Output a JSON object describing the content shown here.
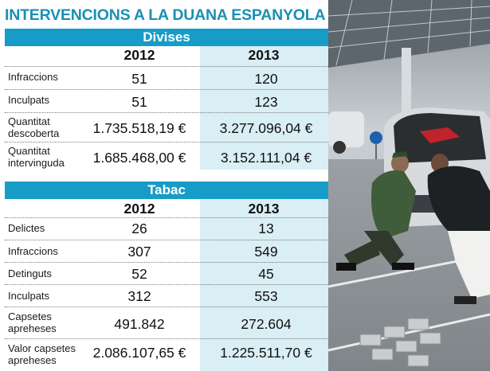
{
  "title": "INTERVENCIONS A LA DUANA ESPANYOLA",
  "colors": {
    "accent": "#169cc7",
    "title": "#1a8fb3",
    "highlight": "#d9eef5"
  },
  "photo": {
    "icon": "customs-inspection-photo"
  },
  "sections": [
    {
      "heading": "Divises",
      "years": [
        "2012",
        "2013"
      ],
      "rows": [
        {
          "label": "Infraccions",
          "label2": "",
          "v2012": "51",
          "v2013": "120"
        },
        {
          "label": "Inculpats",
          "label2": "",
          "v2012": "51",
          "v2013": "123"
        },
        {
          "label": "Quantitat",
          "label2": "descoberta",
          "v2012": "1.735.518,19 €",
          "v2013": "3.277.096,04 €"
        },
        {
          "label": "Quantitat",
          "label2": "intervinguda",
          "v2012": "1.685.468,00 €",
          "v2013": "3.152.111,04 €"
        }
      ]
    },
    {
      "heading": "Tabac",
      "years": [
        "2012",
        "2013"
      ],
      "rows": [
        {
          "label": "Delictes",
          "label2": "",
          "v2012": "26",
          "v2013": "13"
        },
        {
          "label": "Infraccions",
          "label2": "",
          "v2012": "307",
          "v2013": "549"
        },
        {
          "label": "Detinguts",
          "label2": "",
          "v2012": "52",
          "v2013": "45"
        },
        {
          "label": "Inculpats",
          "label2": "",
          "v2012": "312",
          "v2013": "553"
        },
        {
          "label": "Capsetes",
          "label2": "apreheses",
          "v2012": "491.842",
          "v2013": "272.604"
        },
        {
          "label": "Valor capsetes",
          "label2": "apreheses",
          "v2012": "2.086.107,65 €",
          "v2013": "1.225.511,70 €"
        }
      ]
    }
  ]
}
